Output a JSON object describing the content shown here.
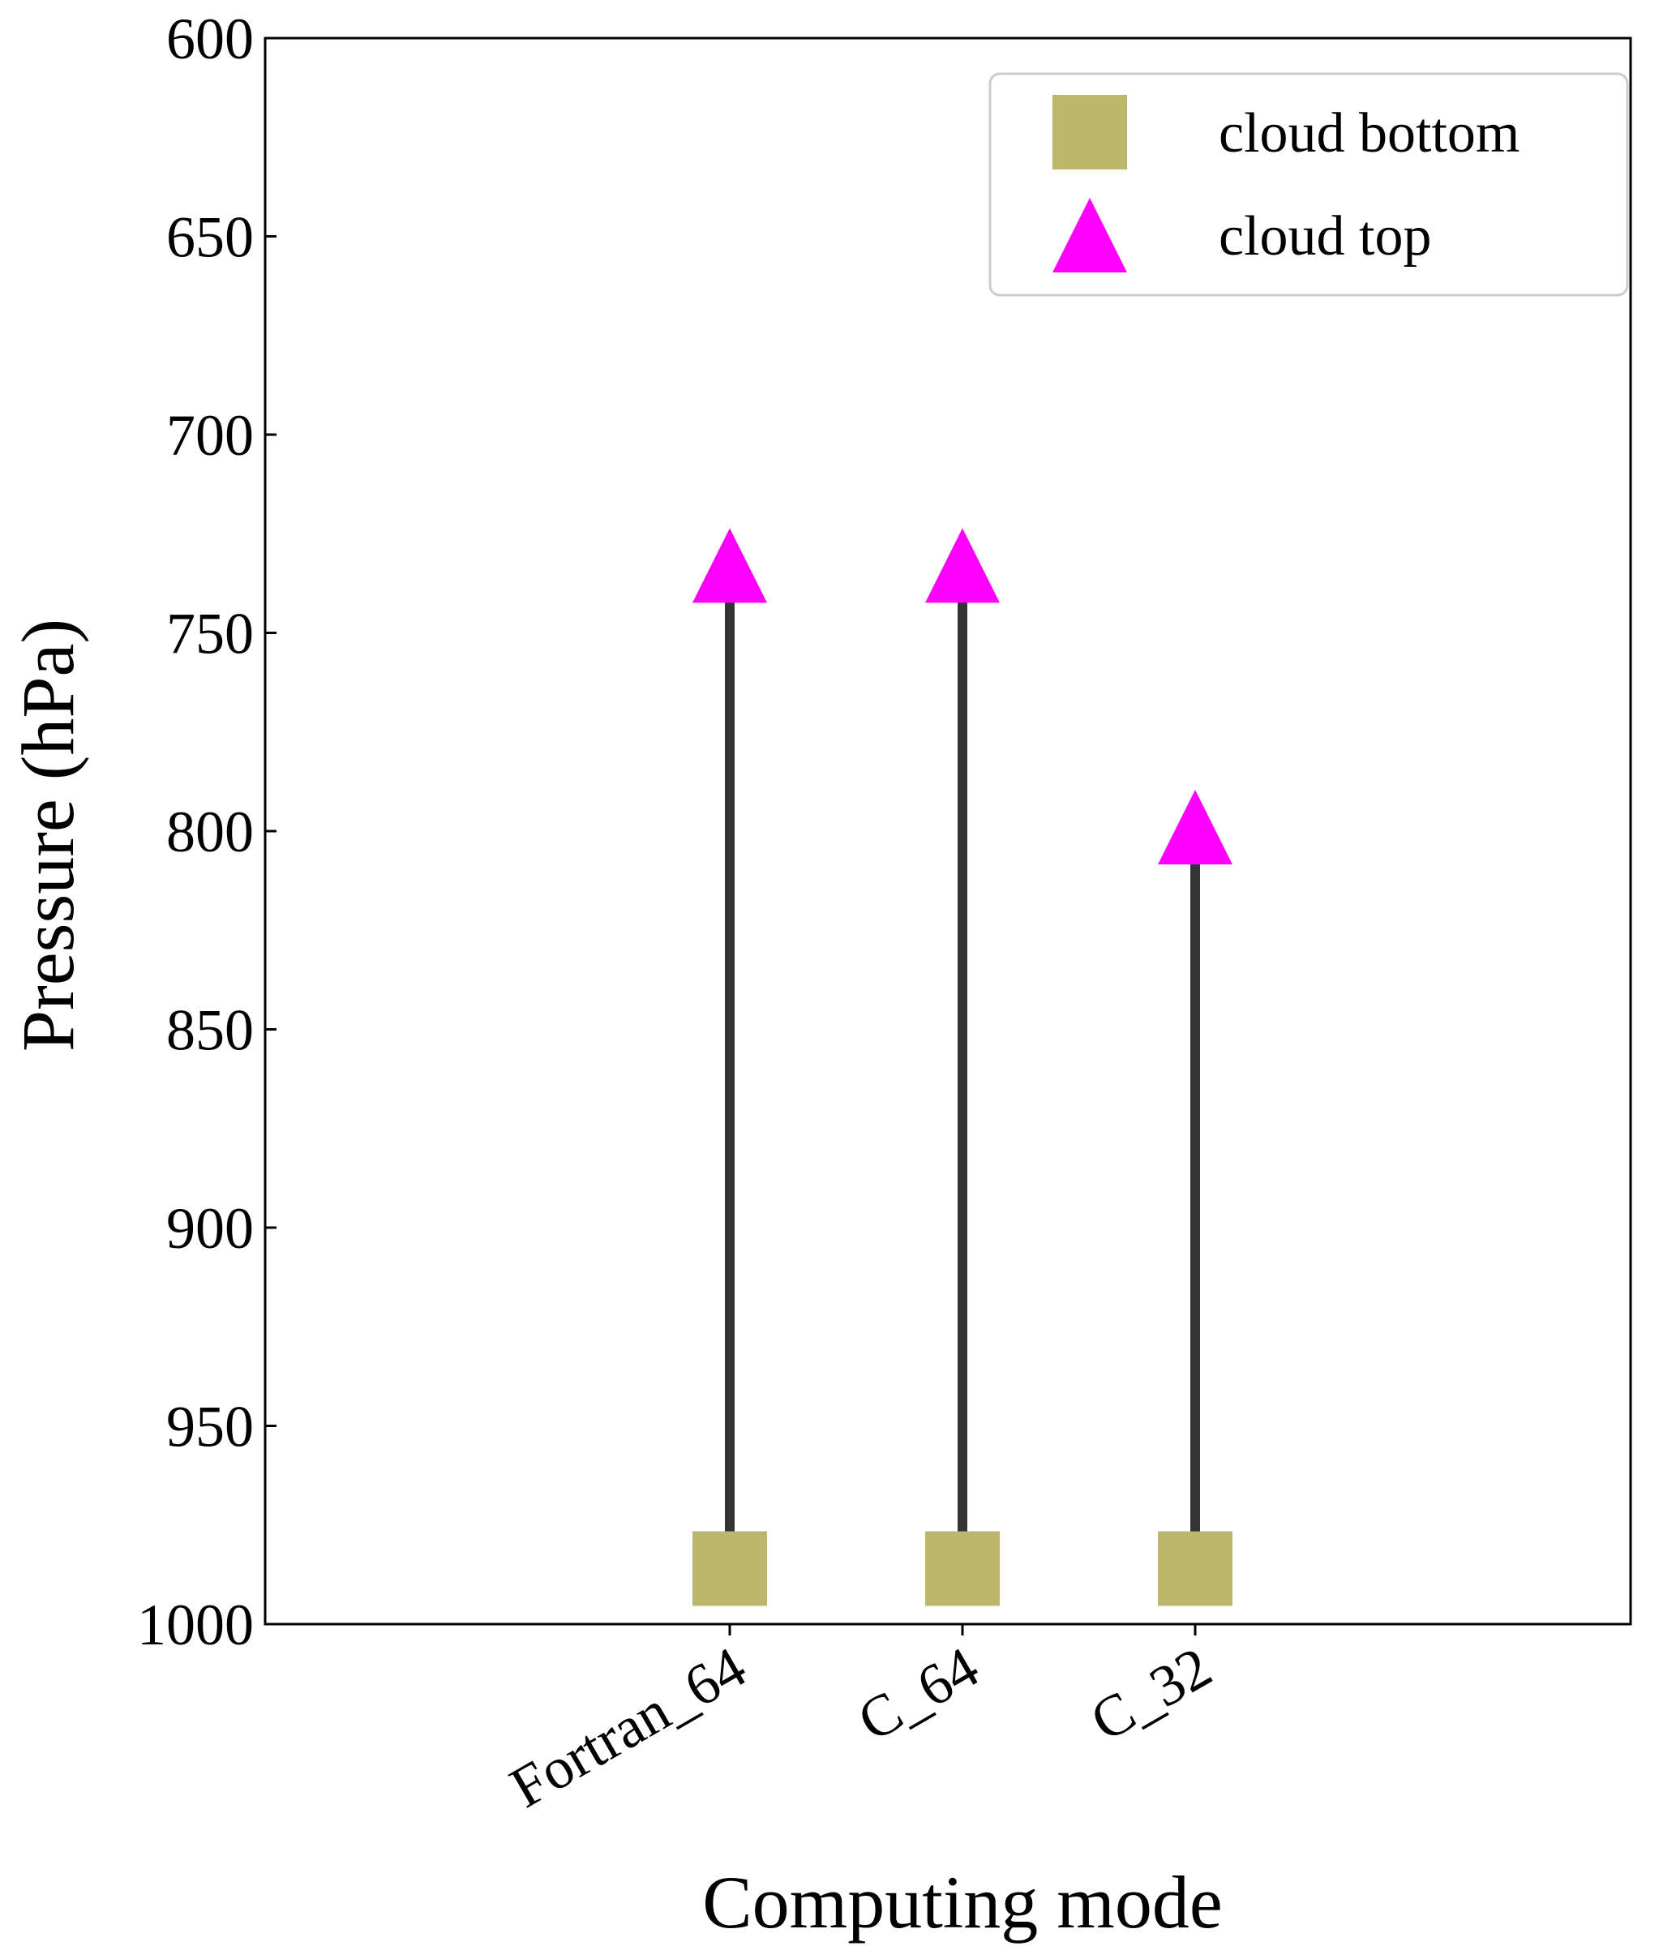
{
  "chart_data": {
    "type": "scatter",
    "title": "",
    "xlabel": "Computing mode",
    "ylabel": "Pressure (hPa)",
    "categories": [
      "Fortran_64",
      "C_64",
      "C_32"
    ],
    "ylim": [
      1000,
      600
    ],
    "y_inverted": true,
    "yticks": [
      600,
      650,
      700,
      750,
      800,
      850,
      900,
      950,
      1000
    ],
    "grid": false,
    "legend_position": "top-right",
    "series": [
      {
        "name": "cloud bottom",
        "marker": "square",
        "color": "#bdb76b",
        "values": [
          986,
          986,
          986
        ]
      },
      {
        "name": "cloud top",
        "marker": "triangle",
        "color": "#ff00ff",
        "values": [
          733,
          733,
          799
        ]
      }
    ],
    "range_line_color": "#333333"
  }
}
